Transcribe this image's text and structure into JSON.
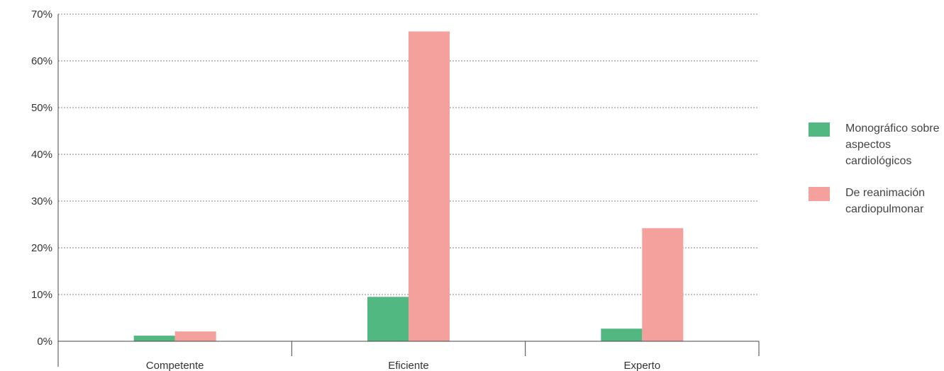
{
  "chart_data": {
    "type": "bar",
    "title": "",
    "xlabel": "",
    "ylabel": "",
    "categories": [
      "Competente",
      "Eficiente",
      "Experto"
    ],
    "series": [
      {
        "name": "Monográfico sobre aspectos cardiológicos",
        "color": "#52b882",
        "values": [
          1.2,
          9.5,
          2.7
        ]
      },
      {
        "name": "De reanimación cardiopulmonar",
        "color": "#f4a09c",
        "values": [
          2.1,
          66.3,
          24.2
        ]
      }
    ],
    "ylim": [
      0,
      70
    ],
    "yticks": [
      0,
      10,
      20,
      30,
      40,
      50,
      60,
      70
    ],
    "ytick_labels": [
      "0%",
      "10%",
      "20%",
      "30%",
      "40%",
      "50%",
      "60%",
      "70%"
    ],
    "grid": true,
    "legend_position": "right"
  }
}
